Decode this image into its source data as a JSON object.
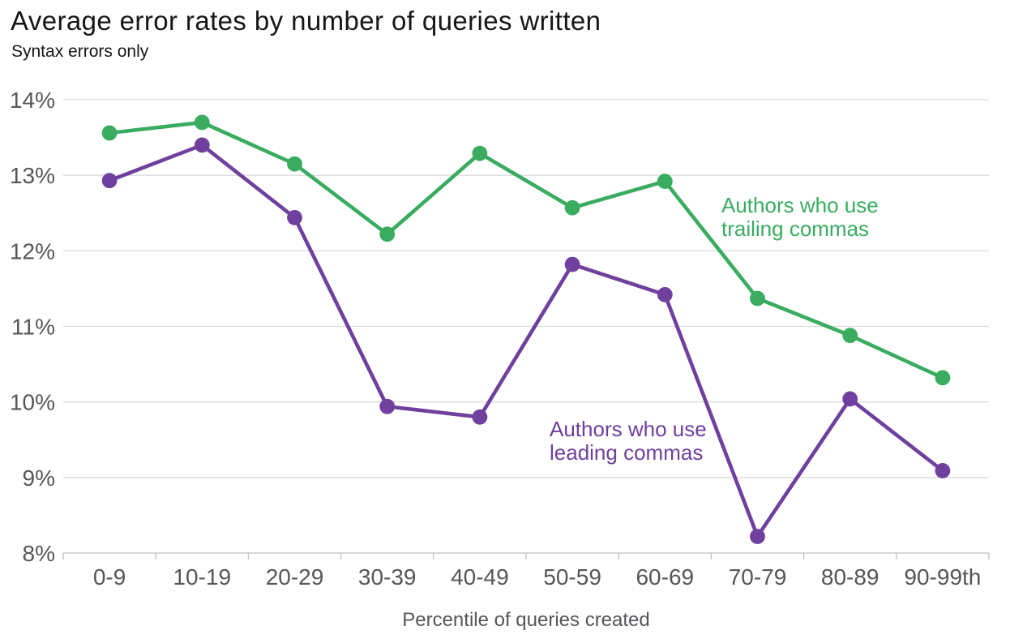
{
  "chart_data": {
    "type": "line",
    "title": "Average error rates by number of queries written",
    "subtitle": "Syntax errors only",
    "xlabel": "Percentile of queries created",
    "ylabel": "",
    "categories": [
      "0-9",
      "10-19",
      "20-29",
      "30-39",
      "40-49",
      "50-59",
      "60-69",
      "70-79",
      "80-89",
      "90-99th"
    ],
    "ylim": [
      8,
      14
    ],
    "yticks": [
      {
        "value": 14,
        "label": "14%"
      },
      {
        "value": 13,
        "label": "13%"
      },
      {
        "value": 12,
        "label": "12%"
      },
      {
        "value": 11,
        "label": "11%"
      },
      {
        "value": 10,
        "label": "10%"
      },
      {
        "value": 9,
        "label": "9%"
      },
      {
        "value": 8,
        "label": "8%"
      }
    ],
    "grid": "horizontal gridlines on, x boundary ticks below axis",
    "legend_position": "inline annotations next to lines",
    "series": [
      {
        "name": "Authors who use trailing commas",
        "key": "trailing-commas",
        "color": "#39AC60",
        "annotation_lines": [
          "Authors who use",
          "trailing commas"
        ],
        "values": [
          13.56,
          13.7,
          13.15,
          12.22,
          13.29,
          12.57,
          12.92,
          11.37,
          10.88,
          10.32
        ]
      },
      {
        "name": "Authors who use leading commas",
        "key": "leading-commas",
        "color": "#6F409E",
        "annotation_lines": [
          "Authors who use",
          "leading commas"
        ],
        "values": [
          12.93,
          13.4,
          12.44,
          9.94,
          9.8,
          11.82,
          11.42,
          8.22,
          10.04,
          9.09
        ]
      }
    ]
  },
  "colors": {
    "trailing_green": "#39AC60",
    "leading_purple": "#6F409E",
    "axis_text": "#55565A",
    "title_text": "#161616",
    "gridline": "#DCDCDC",
    "axis_line": "#BFBFC3",
    "background": "#FFFFFF"
  }
}
